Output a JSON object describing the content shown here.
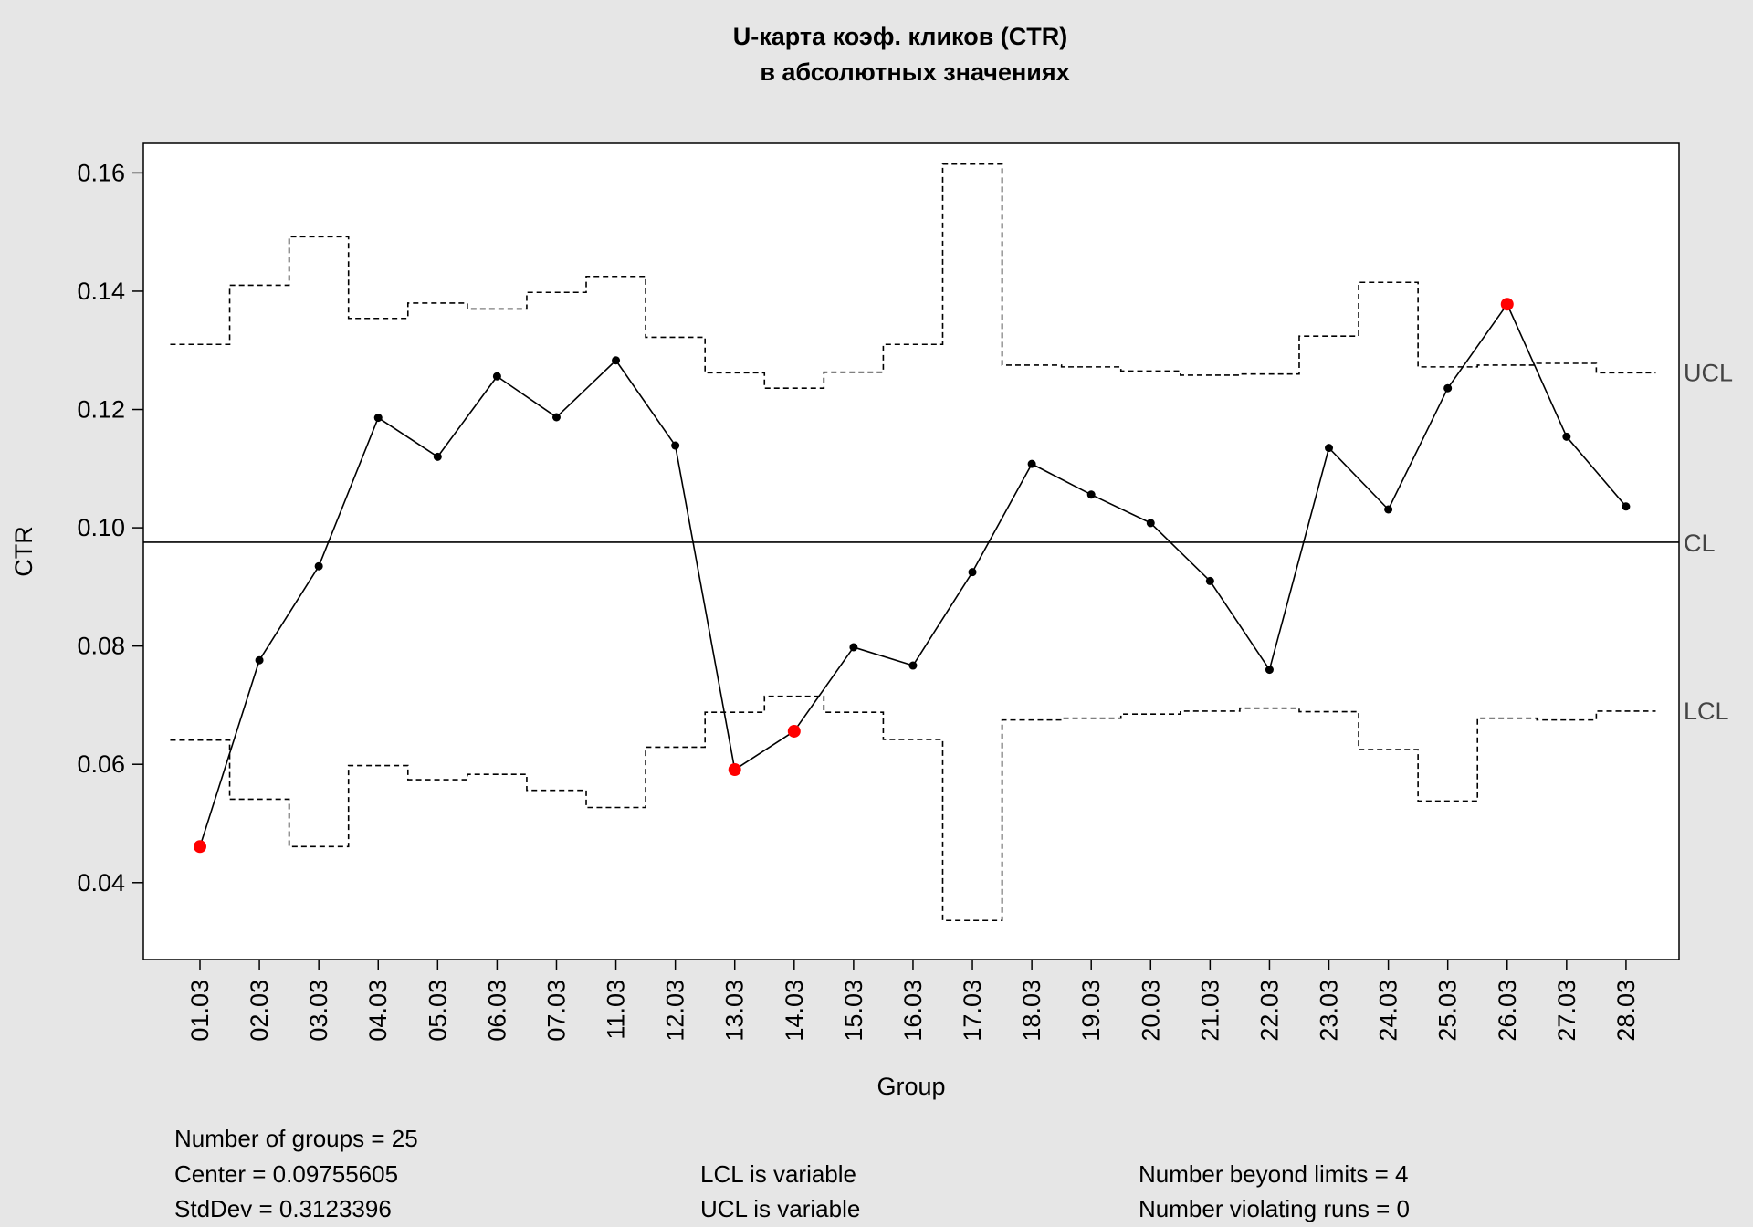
{
  "chart_data": {
    "type": "line",
    "title": [
      "U-карта коэф. кликов (CTR)",
      "в абсолютных значениях"
    ],
    "xlabel": "Group",
    "ylabel": "CTR",
    "ylim": [
      0.027,
      0.165
    ],
    "yticks": [
      0.04,
      0.06,
      0.08,
      0.1,
      0.12,
      0.14,
      0.16
    ],
    "ytick_labels": [
      "0.04",
      "0.06",
      "0.08",
      "0.10",
      "0.12",
      "0.14",
      "0.16"
    ],
    "categories": [
      "01.03",
      "02.03",
      "03.03",
      "04.03",
      "05.03",
      "06.03",
      "07.03",
      "11.03",
      "12.03",
      "13.03",
      "14.03",
      "15.03",
      "16.03",
      "17.03",
      "18.03",
      "19.03",
      "20.03",
      "21.03",
      "22.03",
      "23.03",
      "24.03",
      "25.03",
      "26.03",
      "27.03",
      "28.03"
    ],
    "values": [
      0.0461,
      0.0776,
      0.0935,
      0.1186,
      0.112,
      0.1256,
      0.1187,
      0.1283,
      0.1139,
      0.0591,
      0.0656,
      0.0798,
      0.0767,
      0.0925,
      0.1108,
      0.1056,
      0.1008,
      0.091,
      0.076,
      0.1135,
      0.1031,
      0.1236,
      0.1378,
      0.1154,
      0.1036
    ],
    "ucl": [
      0.131,
      0.141,
      0.1492,
      0.1354,
      0.138,
      0.137,
      0.1398,
      0.1425,
      0.1322,
      0.1262,
      0.1236,
      0.1263,
      0.131,
      0.1615,
      0.1275,
      0.1272,
      0.1265,
      0.1258,
      0.126,
      0.1324,
      0.1415,
      0.1272,
      0.1275,
      0.1278,
      0.1262
    ],
    "lcl": [
      0.0641,
      0.0541,
      0.0461,
      0.0598,
      0.0574,
      0.0583,
      0.0556,
      0.0527,
      0.0629,
      0.0688,
      0.0715,
      0.0688,
      0.0642,
      0.0336,
      0.0675,
      0.0678,
      0.0685,
      0.069,
      0.0695,
      0.0689,
      0.0625,
      0.0538,
      0.0678,
      0.0675,
      0.069
    ],
    "center": 0.09755605,
    "violations": [
      0,
      9,
      10,
      22
    ],
    "line_labels": {
      "ucl": "UCL",
      "cl": "CL",
      "lcl": "LCL"
    },
    "colors": {
      "point": "#000000",
      "violation": "#ff0000",
      "line": "#000000",
      "background": "#e6e6e6",
      "plot_background": "#ffffff",
      "limit_label": "#444444"
    }
  },
  "stats": {
    "groups": "Number of groups = 25",
    "center": "Center = 0.09755605",
    "stddev": "StdDev = 0.3123396",
    "lcl": "LCL is variable",
    "ucl": "UCL is variable",
    "beyond": "Number beyond limits = 4",
    "runs": "Number violating runs = 0"
  }
}
